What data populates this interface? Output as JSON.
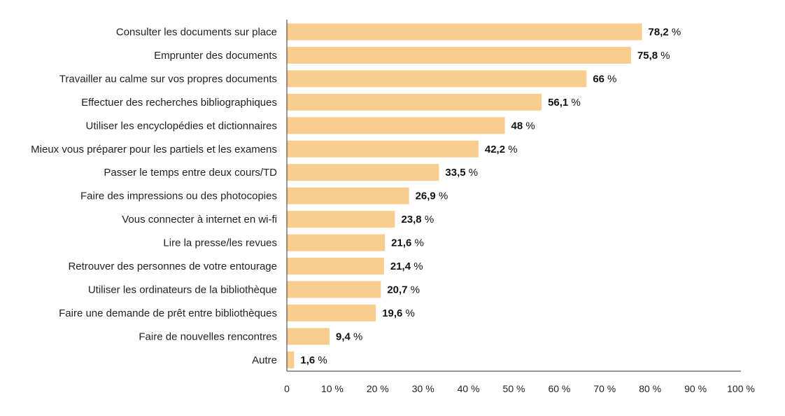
{
  "chart_data": {
    "type": "bar",
    "orientation": "horizontal",
    "categories": [
      "Consulter les documents sur place",
      "Emprunter des documents",
      "Travailler au calme sur vos propres documents",
      "Effectuer des recherches bibliographiques",
      "Utiliser les encyclopédies et dictionnaires",
      "Mieux vous préparer pour les partiels et les examens",
      "Passer le temps entre deux cours/TD",
      "Faire des impressions ou des photocopies",
      "Vous connecter à internet en wi-fi",
      "Lire la presse/les revues",
      "Retrouver des personnes de votre entourage",
      "Utiliser les ordinateurs de la bibliothèque",
      "Faire une demande de prêt entre bibliothèques",
      "Faire de nouvelles rencontres",
      "Autre"
    ],
    "values": [
      78.2,
      75.8,
      66,
      56.1,
      48,
      42.2,
      33.5,
      26.9,
      23.8,
      21.6,
      21.4,
      20.7,
      19.6,
      9.4,
      1.6
    ],
    "value_labels": [
      "78,2",
      "75,8",
      "66",
      "56,1",
      "48",
      "42,2",
      "33,5",
      "26,9",
      "23,8",
      "21,6",
      "21,4",
      "20,7",
      "19,6",
      "9,4",
      "1,6"
    ],
    "unit_suffix": " %",
    "xlim": [
      0,
      100
    ],
    "x_ticks": [
      0,
      10,
      20,
      30,
      40,
      50,
      60,
      70,
      80,
      90,
      100
    ],
    "x_tick_labels": [
      "0",
      "10 %",
      "20 %",
      "30 %",
      "40 %",
      "50 %",
      "60 %",
      "70 %",
      "80 %",
      "90 %",
      "100 %"
    ],
    "title": "",
    "xlabel": "",
    "ylabel": "",
    "grid": false,
    "colors": {
      "bar": "#F9CD8E",
      "axis": "#333333"
    }
  }
}
